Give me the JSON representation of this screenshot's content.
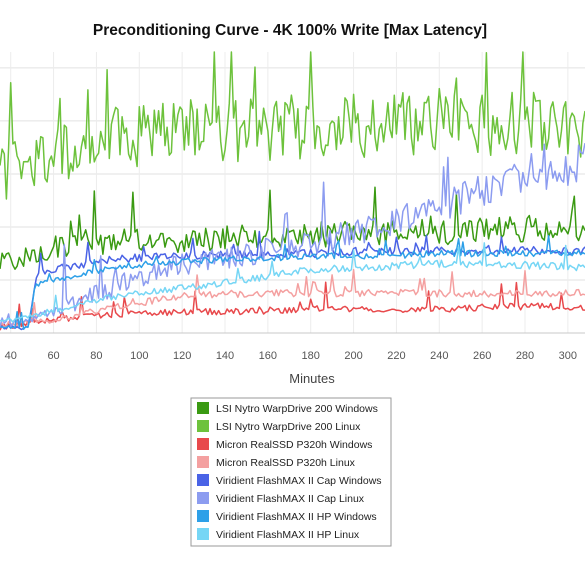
{
  "chart_data": {
    "type": "line",
    "title": "Preconditioning Curve - 4K 100% Write [Max Latency]",
    "xlabel": "Minutes",
    "ylabel": "",
    "x_ticks": [
      40,
      60,
      80,
      100,
      120,
      140,
      160,
      180,
      200,
      220,
      240,
      260,
      280,
      300
    ],
    "xlim": [
      35,
      308
    ],
    "y_gridlines": [
      0,
      1,
      2,
      3,
      4,
      5
    ],
    "ylim": [
      0,
      5.3
    ],
    "grid": true,
    "legend_position": "bottom-center",
    "series": [
      {
        "name": "LSI Nytro WarpDrive 200 Windows",
        "color": "#3a9a12",
        "x": [
          35,
          60,
          90,
          120,
          150,
          180,
          210,
          240,
          270,
          300,
          308
        ],
        "values": [
          1.3,
          1.6,
          1.75,
          1.75,
          1.8,
          1.85,
          1.9,
          1.9,
          1.95,
          2.0,
          1.95
        ]
      },
      {
        "name": "LSI Nytro WarpDrive 200 Linux",
        "color": "#6dc23c",
        "x": [
          35,
          60,
          90,
          120,
          150,
          180,
          210,
          240,
          270,
          300,
          308
        ],
        "values": [
          3.0,
          3.4,
          3.7,
          3.8,
          3.85,
          3.9,
          3.9,
          3.95,
          3.95,
          4.0,
          3.9
        ]
      },
      {
        "name": "Micron RealSSD P320h Windows",
        "color": "#e8494c",
        "x": [
          35,
          60,
          90,
          120,
          150,
          180,
          210,
          240,
          270,
          300,
          308
        ],
        "values": [
          0.1,
          0.25,
          0.35,
          0.4,
          0.4,
          0.45,
          0.45,
          0.45,
          0.5,
          0.5,
          0.45
        ]
      },
      {
        "name": "Micron RealSSD P320h Linux",
        "color": "#f4a0a0",
        "x": [
          35,
          60,
          90,
          120,
          150,
          180,
          210,
          240,
          270,
          300,
          308
        ],
        "values": [
          0.15,
          0.25,
          0.5,
          0.7,
          0.75,
          0.75,
          0.75,
          0.75,
          0.75,
          0.75,
          0.75
        ]
      },
      {
        "name": "Viridient FlashMAX II Cap Windows",
        "color": "#4a63e6",
        "x": [
          35,
          48,
          52,
          60,
          90,
          120,
          150,
          180,
          210,
          240,
          270,
          300,
          308
        ],
        "values": [
          0.1,
          0.1,
          1.1,
          1.2,
          1.4,
          1.45,
          1.5,
          1.5,
          1.55,
          1.55,
          1.55,
          1.55,
          1.55
        ]
      },
      {
        "name": "Viridient FlashMAX II Cap Linux",
        "color": "#8c9cf0",
        "x": [
          35,
          60,
          90,
          120,
          150,
          180,
          210,
          240,
          270,
          300,
          308
        ],
        "values": [
          0.2,
          0.4,
          0.9,
          1.3,
          1.5,
          1.7,
          2.0,
          2.4,
          2.8,
          3.1,
          3.3
        ]
      },
      {
        "name": "Viridient FlashMAX II HP Windows",
        "color": "#2ea0e8",
        "x": [
          35,
          48,
          52,
          60,
          90,
          120,
          150,
          180,
          210,
          240,
          270,
          300,
          308
        ],
        "values": [
          0.1,
          0.1,
          0.9,
          1.0,
          1.25,
          1.35,
          1.4,
          1.45,
          1.45,
          1.5,
          1.5,
          1.5,
          1.5
        ]
      },
      {
        "name": "Viridient FlashMAX II HP Linux",
        "color": "#76d6f5",
        "x": [
          35,
          60,
          90,
          120,
          150,
          180,
          210,
          240,
          270,
          300,
          308
        ],
        "values": [
          0.2,
          0.4,
          0.7,
          0.85,
          1.0,
          1.2,
          1.25,
          1.3,
          1.3,
          1.25,
          1.25
        ]
      }
    ]
  }
}
